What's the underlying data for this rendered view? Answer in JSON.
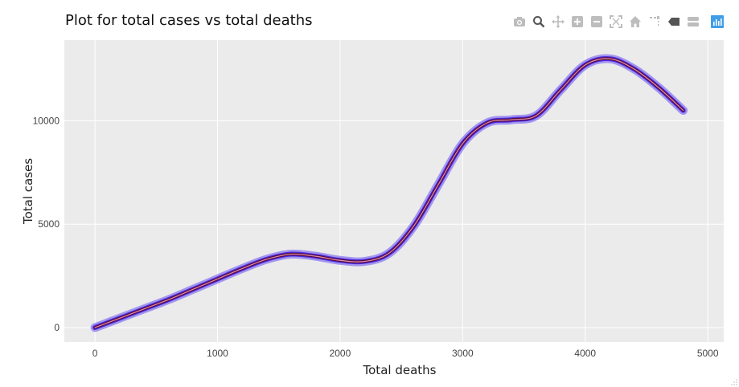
{
  "chart_data": {
    "type": "line",
    "title": "Plot for total cases vs total deaths",
    "xlabel": "Total deaths",
    "ylabel": "Total cases",
    "xlim": [
      -250,
      5130
    ],
    "ylim": [
      -700,
      13900
    ],
    "xticks": [
      0,
      1000,
      2000,
      3000,
      4000,
      5000
    ],
    "xtick_labels": [
      "0",
      "1000",
      "2000",
      "3000",
      "4000",
      "5000"
    ],
    "yticks": [
      0,
      5000,
      10000
    ],
    "ytick_labels": [
      "0",
      "5000",
      "10000"
    ],
    "grid": true,
    "legend": "none",
    "colors": {
      "background": "#ebebeb",
      "grid": "#ffffff",
      "band": "#9b8cef",
      "edge": "#4a2be0",
      "line": "#5c0a3a",
      "center": "#f5a6c4"
    },
    "series": [
      {
        "x": [
          0,
          200,
          400,
          600,
          800,
          1000,
          1200,
          1400,
          1600,
          1800,
          2000,
          2200,
          2400,
          2600,
          2800,
          3000,
          3200,
          3400,
          3600,
          3800,
          4000,
          4200,
          4400,
          4600,
          4800
        ],
        "values": [
          0,
          450,
          900,
          1350,
          1850,
          2350,
          2850,
          3300,
          3550,
          3450,
          3250,
          3200,
          3600,
          4900,
          6900,
          8900,
          9900,
          10050,
          10250,
          11500,
          12700,
          13000,
          12500,
          11600,
          10500
        ]
      }
    ]
  },
  "modebar": {
    "icons": [
      "camera-icon",
      "zoom-icon",
      "pan-icon",
      "zoom-in-icon",
      "zoom-out-icon",
      "autoscale-icon",
      "home-icon",
      "spike-lines-icon",
      "hover-closest-icon",
      "hover-compare-icon",
      "plotly-logo-icon"
    ]
  }
}
